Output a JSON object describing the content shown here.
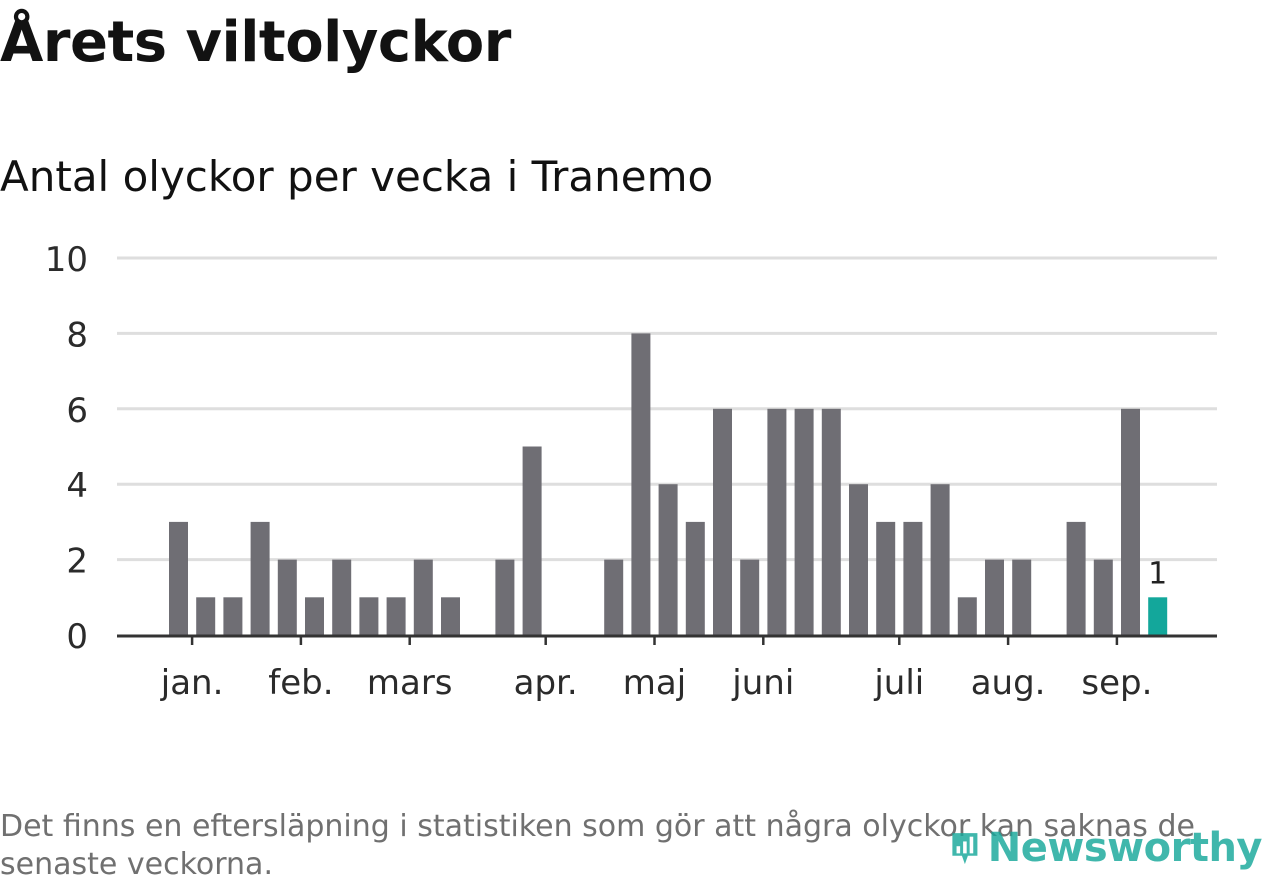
{
  "title": "Årets viltolyckor",
  "subtitle": "Antal olyckor per vecka i Tranemo",
  "footnote": "Det finns en eftersläpning i statistiken som gör att några olyckor kan saknas de senaste veckorna.",
  "logo": {
    "text": "Newsworthy",
    "icon": "bar-chart-icon"
  },
  "colors": {
    "bar": "#6f6e74",
    "highlight": "#13a79b",
    "grid": "#dedede",
    "axis": "#333333"
  },
  "chart_data": {
    "type": "bar",
    "ylim": [
      0,
      10
    ],
    "yticks": [
      "0",
      "2",
      "4",
      "6",
      "8",
      "10"
    ],
    "x": [
      1,
      2,
      3,
      4,
      5,
      6,
      7,
      8,
      9,
      10,
      11,
      12,
      13,
      14,
      15,
      16,
      17,
      18,
      19,
      20,
      21,
      22,
      23,
      24,
      25,
      26,
      27,
      28,
      29,
      30,
      31,
      32,
      33,
      34,
      35,
      36,
      37,
      38
    ],
    "values": [
      3,
      1,
      1,
      3,
      2,
      1,
      2,
      1,
      1,
      2,
      1,
      null,
      2,
      5,
      null,
      null,
      2,
      8,
      4,
      3,
      6,
      2,
      6,
      6,
      6,
      4,
      3,
      3,
      4,
      1,
      2,
      2,
      null,
      3,
      2,
      6,
      1,
      null
    ],
    "highlight_index": 36,
    "highlight_label": "1",
    "month_labels": [
      {
        "label": "jan.",
        "at": 1.5
      },
      {
        "label": "feb.",
        "at": 5.5
      },
      {
        "label": "mars",
        "at": 9.5
      },
      {
        "label": "apr.",
        "at": 14.5
      },
      {
        "label": "maj",
        "at": 18.5
      },
      {
        "label": "juni",
        "at": 22.5
      },
      {
        "label": "juli",
        "at": 27.5
      },
      {
        "label": "aug.",
        "at": 31.5
      },
      {
        "label": "sep.",
        "at": 35.5
      }
    ],
    "grid": true,
    "legend": "none"
  }
}
